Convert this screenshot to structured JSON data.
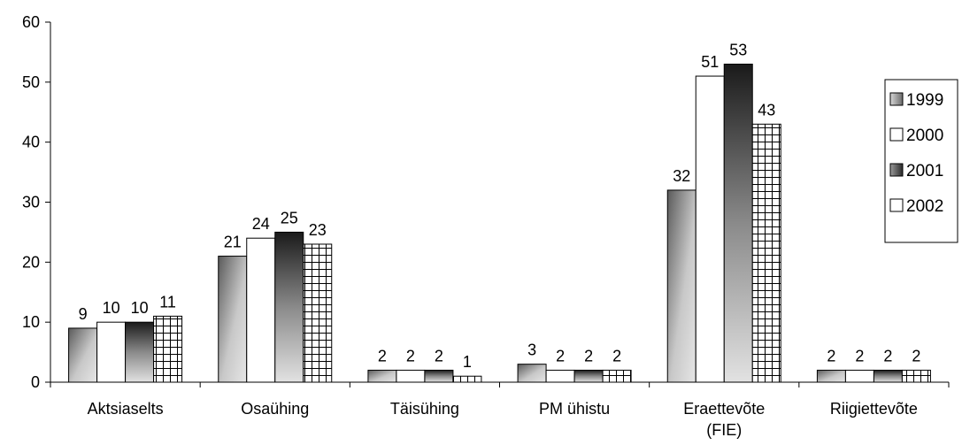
{
  "chart_data": {
    "type": "bar",
    "categories": [
      "Aktsiaselts",
      "Osaühing",
      "Täisühing",
      "PM ühistu",
      "Eraettevõte (FIE)",
      "Riigiettevõte"
    ],
    "series": [
      {
        "name": "1999",
        "values": [
          9,
          21,
          2,
          3,
          32,
          2
        ]
      },
      {
        "name": "2000",
        "values": [
          10,
          24,
          2,
          2,
          51,
          2
        ]
      },
      {
        "name": "2001",
        "values": [
          10,
          25,
          2,
          2,
          53,
          2
        ]
      },
      {
        "name": "2002",
        "values": [
          11,
          23,
          1,
          2,
          43,
          2
        ]
      }
    ],
    "ylim": [
      0,
      60
    ],
    "yticks": [
      0,
      10,
      20,
      30,
      40,
      50,
      60
    ],
    "grid": false,
    "data_labels": true,
    "legend_position": "right"
  }
}
